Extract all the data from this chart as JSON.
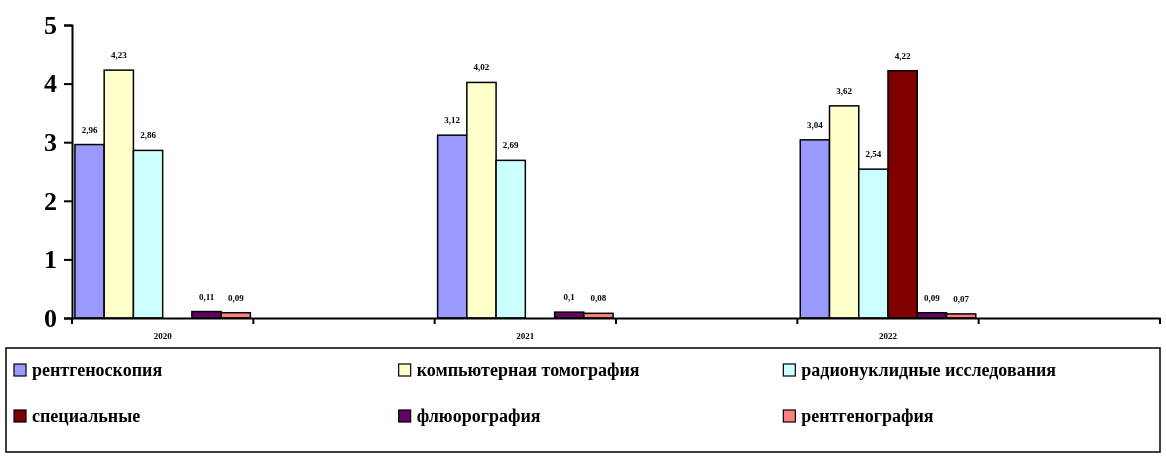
{
  "chart_data": {
    "type": "bar",
    "categories": [
      "2020",
      null,
      "2021",
      null,
      "2022",
      null
    ],
    "series": [
      {
        "name": "рентгеноскопия",
        "color": "#9999ff",
        "values": [
          2.96,
          null,
          3.12,
          null,
          3.04,
          null
        ],
        "value_labels": [
          "2,96",
          null,
          "3,12",
          null,
          "3,04",
          null
        ]
      },
      {
        "name": "компьютерная томография",
        "color": "#ffffcc",
        "values": [
          4.23,
          null,
          4.02,
          null,
          3.62,
          null
        ],
        "value_labels": [
          "4,23",
          null,
          "4,02",
          null,
          "3,62",
          null
        ]
      },
      {
        "name": "радионуклидные исследования",
        "color": "#ccffff",
        "values": [
          2.86,
          null,
          2.69,
          null,
          2.54,
          null
        ],
        "value_labels": [
          "2,86",
          null,
          "2,69",
          null,
          "2,54",
          null
        ]
      },
      {
        "name": "специальные",
        "color": "#800000",
        "values": [
          null,
          null,
          null,
          null,
          4.22,
          null
        ],
        "value_labels": [
          null,
          null,
          null,
          null,
          "4,22",
          null
        ]
      },
      {
        "name": "флюорография",
        "color": "#660066",
        "values": [
          0.11,
          null,
          0.1,
          null,
          0.09,
          null
        ],
        "value_labels": [
          "0,11",
          null,
          "0,1",
          null,
          "0,09",
          null
        ]
      },
      {
        "name": "рентгенография",
        "color": "#ff8080",
        "values": [
          0.09,
          null,
          0.08,
          null,
          0.07,
          null
        ],
        "value_labels": [
          "0,09",
          null,
          "0,08",
          null,
          "0,07",
          null
        ]
      }
    ],
    "ylim": [
      0,
      5
    ],
    "yticks": [
      0,
      1,
      2,
      3,
      4,
      5
    ],
    "legend": "bottom"
  }
}
